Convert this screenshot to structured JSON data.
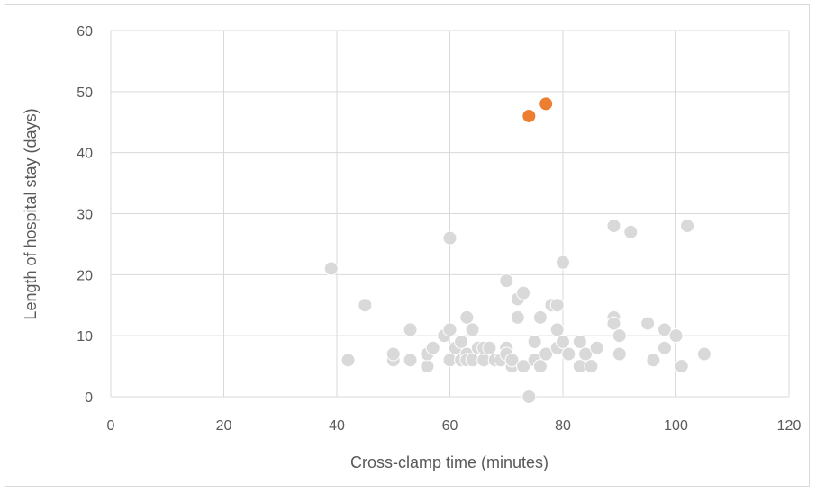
{
  "chart_data": {
    "type": "scatter",
    "title": "",
    "xlabel": "Cross-clamp time (minutes)",
    "ylabel": "Length of hospital stay (days)",
    "xlim": [
      0,
      120
    ],
    "ylim": [
      0,
      60
    ],
    "xticks": [
      0,
      20,
      40,
      60,
      80,
      100,
      120
    ],
    "yticks": [
      0,
      10,
      20,
      30,
      40,
      50,
      60
    ],
    "grid": true,
    "legend": "none",
    "series": [
      {
        "color": "#d9d9d9",
        "points": [
          [
            39,
            21
          ],
          [
            42,
            6
          ],
          [
            45,
            15
          ],
          [
            50,
            6
          ],
          [
            50,
            7
          ],
          [
            53,
            6
          ],
          [
            53,
            11
          ],
          [
            56,
            5
          ],
          [
            56,
            7
          ],
          [
            57,
            8
          ],
          [
            59,
            10
          ],
          [
            60,
            26
          ],
          [
            60,
            11
          ],
          [
            60,
            6
          ],
          [
            61,
            8
          ],
          [
            62,
            9
          ],
          [
            62,
            6
          ],
          [
            63,
            13
          ],
          [
            63,
            7
          ],
          [
            63,
            6
          ],
          [
            64,
            11
          ],
          [
            64,
            6
          ],
          [
            65,
            8
          ],
          [
            66,
            6
          ],
          [
            66,
            8
          ],
          [
            67,
            8
          ],
          [
            68,
            6
          ],
          [
            69,
            6
          ],
          [
            70,
            19
          ],
          [
            70,
            8
          ],
          [
            70,
            7
          ],
          [
            71,
            5
          ],
          [
            71,
            6
          ],
          [
            72,
            16
          ],
          [
            72,
            13
          ],
          [
            73,
            17
          ],
          [
            73,
            5
          ],
          [
            74,
            0
          ],
          [
            75,
            9
          ],
          [
            75,
            6
          ],
          [
            76,
            13
          ],
          [
            76,
            5
          ],
          [
            77,
            7
          ],
          [
            78,
            15
          ],
          [
            79,
            15
          ],
          [
            79,
            11
          ],
          [
            79,
            8
          ],
          [
            80,
            22
          ],
          [
            80,
            9
          ],
          [
            81,
            7
          ],
          [
            83,
            9
          ],
          [
            83,
            5
          ],
          [
            84,
            7
          ],
          [
            85,
            5
          ],
          [
            86,
            8
          ],
          [
            89,
            28
          ],
          [
            89,
            13
          ],
          [
            89,
            12
          ],
          [
            90,
            10
          ],
          [
            90,
            7
          ],
          [
            92,
            27
          ],
          [
            95,
            12
          ],
          [
            96,
            6
          ],
          [
            98,
            11
          ],
          [
            98,
            8
          ],
          [
            100,
            10
          ],
          [
            101,
            5
          ],
          [
            102,
            28
          ],
          [
            105,
            7
          ]
        ]
      },
      {
        "color": "#ed7d31",
        "points": [
          [
            74,
            46
          ],
          [
            77,
            48
          ]
        ]
      }
    ]
  }
}
